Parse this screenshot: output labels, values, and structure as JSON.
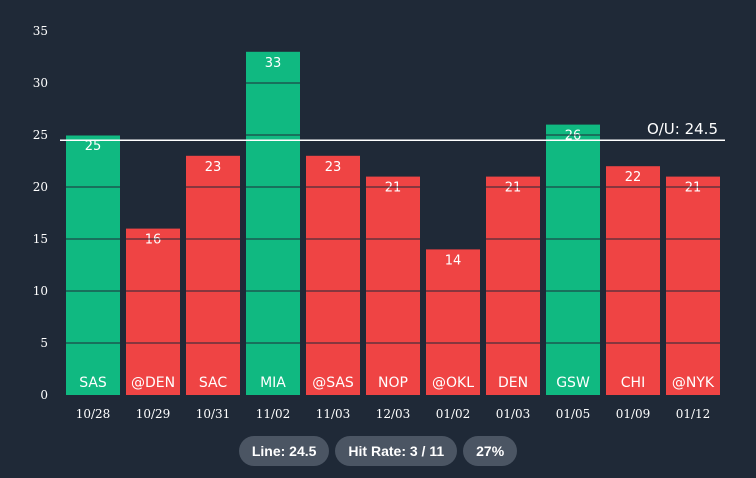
{
  "colors": {
    "background": "#1f2937",
    "over": "#10b981",
    "under": "#ef4444",
    "gridline": "#1f2937",
    "line": "#ffffff",
    "pill": "#4b5563"
  },
  "chart_data": {
    "type": "bar",
    "categories": [
      "10/28",
      "10/29",
      "10/31",
      "11/02",
      "11/03",
      "12/03",
      "01/02",
      "01/03",
      "01/05",
      "01/09",
      "01/12"
    ],
    "opponents": [
      "SAS",
      "@DEN",
      "SAC",
      "MIA",
      "@SAS",
      "NOP",
      "@OKL",
      "DEN",
      "GSW",
      "CHI",
      "@NYK"
    ],
    "values": [
      25,
      16,
      23,
      33,
      23,
      21,
      14,
      21,
      26,
      22,
      21
    ],
    "ylim": [
      0,
      35
    ],
    "yticks": [
      0,
      5,
      10,
      15,
      20,
      25,
      30,
      35
    ],
    "threshold": 24.5,
    "threshold_label": "O/U: 24.5",
    "grid": true
  },
  "stats": {
    "line_label": "Line: 24.5",
    "hit_rate_label": "Hit Rate: 3 / 11",
    "percent_label": "27%"
  }
}
